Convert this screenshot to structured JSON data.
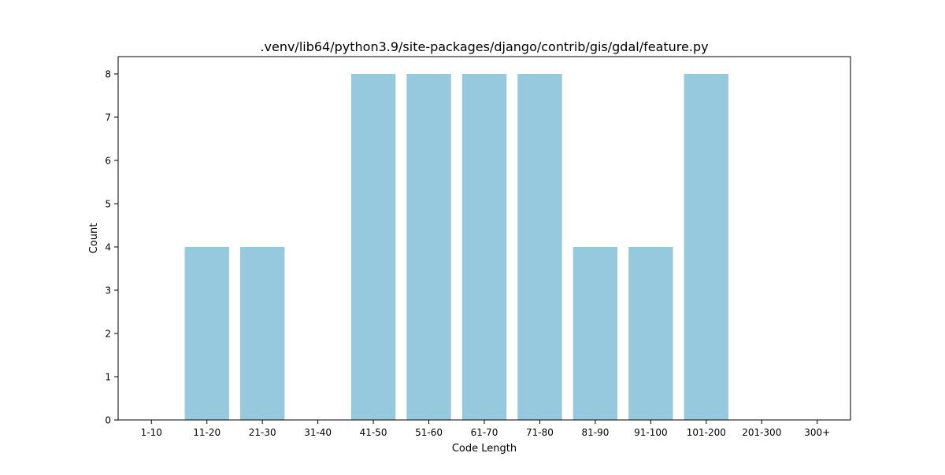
{
  "chart_data": {
    "type": "bar",
    "title": ".venv/lib64/python3.9/site-packages/django/contrib/gis/gdal/feature.py",
    "xlabel": "Code Length",
    "ylabel": "Count",
    "categories": [
      "1-10",
      "11-20",
      "21-30",
      "31-40",
      "41-50",
      "51-60",
      "61-70",
      "71-80",
      "81-90",
      "91-100",
      "101-200",
      "201-300",
      "300+"
    ],
    "values": [
      0,
      4,
      4,
      0,
      8,
      8,
      8,
      8,
      4,
      4,
      8,
      0,
      0
    ],
    "ylim": [
      0,
      8.4
    ],
    "yticks": [
      0,
      1,
      2,
      3,
      4,
      5,
      6,
      7,
      8
    ],
    "bar_color": "#96c9dd",
    "grid": false,
    "legend": "none"
  }
}
